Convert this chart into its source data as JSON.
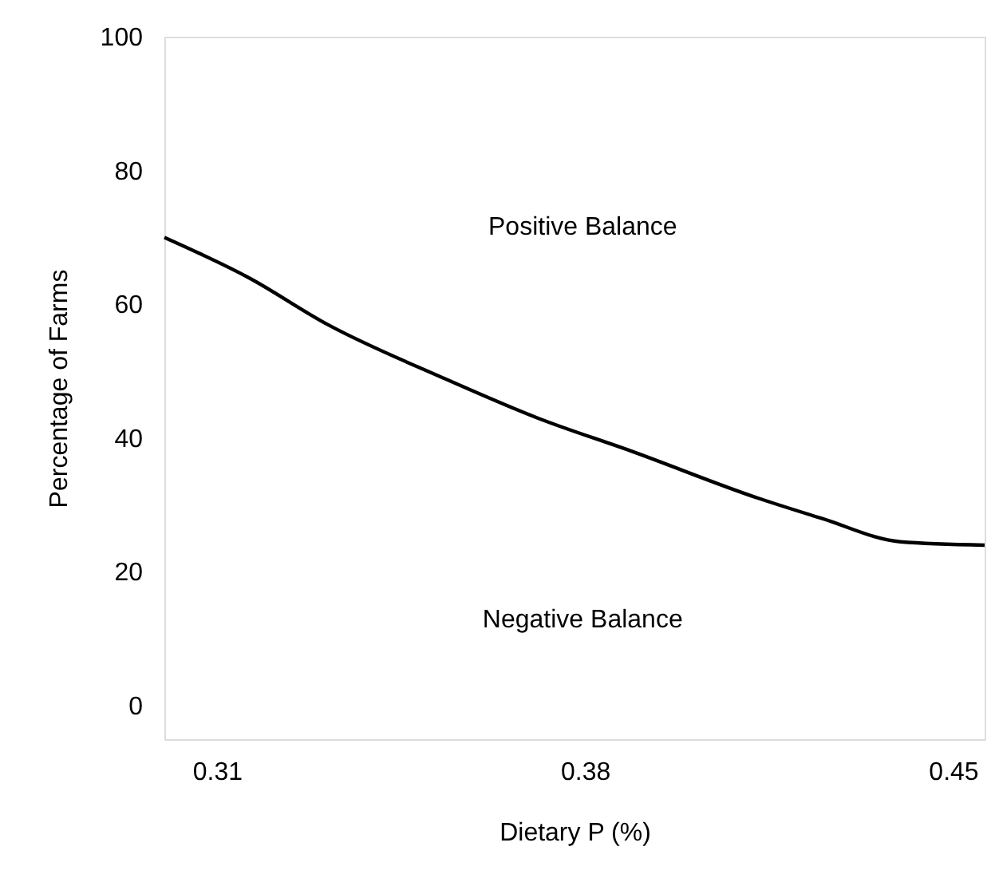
{
  "chart_data": {
    "type": "line",
    "xlabel": "Dietary P (%)",
    "ylabel": "Percentage of Farms",
    "x": [
      0.3,
      0.316,
      0.331,
      0.353,
      0.371,
      0.389,
      0.413,
      0.425,
      0.44,
      0.456
    ],
    "series": [
      {
        "color": "#000000",
        "values": [
          70,
          64,
          57,
          49,
          43,
          38,
          31,
          28,
          24.5,
          24
        ]
      }
    ],
    "xlim": [
      0.3,
      0.456
    ],
    "xticks": [
      0.31,
      0.38,
      0.45
    ],
    "ylim": [
      -5,
      100
    ],
    "yticks": [
      0,
      20,
      40,
      60,
      80,
      100
    ],
    "annotations": [
      "Positive Balance",
      "Negative Balance"
    ],
    "grid": false,
    "marker": "none",
    "line_style": "solid"
  }
}
